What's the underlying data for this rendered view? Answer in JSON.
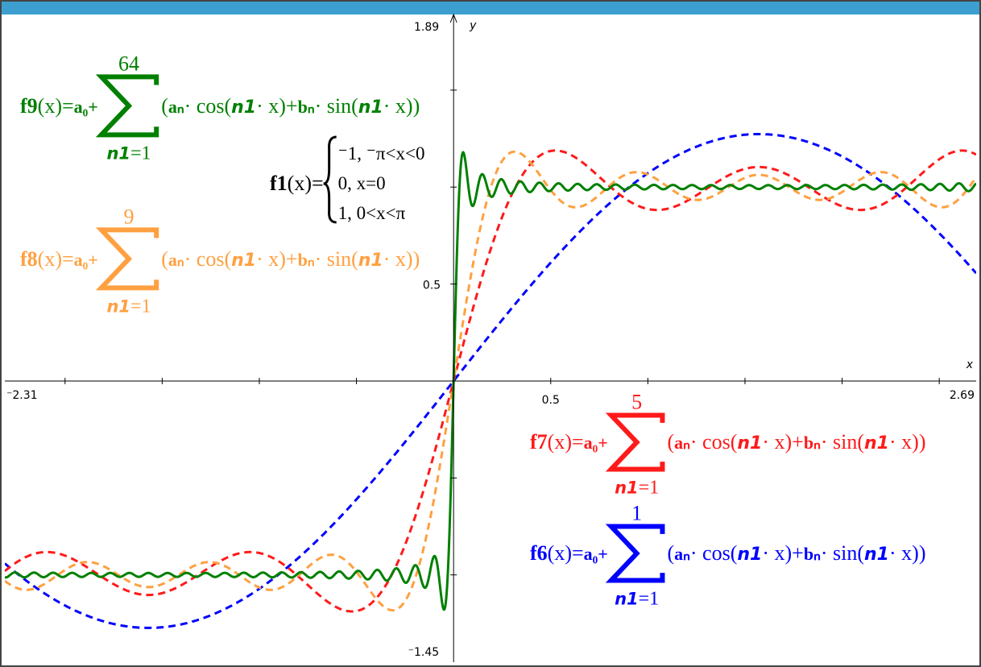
{
  "graph": {
    "xlim": [
      {
        "value": -2.31,
        "label": "⁻2.31"
      },
      2.69
    ],
    "ylim": [
      {
        "value": -1.45,
        "label": "⁻1.45"
      },
      1.89
    ],
    "xticks": [
      -2,
      -1.5,
      -1,
      -0.5,
      0.5,
      1,
      1.5,
      2,
      2.5
    ],
    "yticks": [
      -1,
      -0.5,
      0.5,
      1,
      1.5
    ],
    "x_tick_label": 0.5,
    "y_tick_label": 0.5,
    "x_label": "x",
    "y_label": "y"
  },
  "term": {
    "argument": "(x)=",
    "prefix": "a₀+",
    "summand": [
      "(",
      "aₙ",
      "· cos(",
      "n1",
      "· x)+",
      "bₙ",
      "· sin(",
      "n1",
      "· x))"
    ],
    "index": "n1",
    "lower": "=1"
  },
  "functions": [
    {
      "name": "f9",
      "upper": 64,
      "color": "#008000",
      "dashed": false
    },
    {
      "name": "f8",
      "upper": 9,
      "color": "#ffa040",
      "dashed": true
    },
    {
      "name": "f7",
      "upper": 5,
      "color": "#ff1a1a",
      "dashed": true
    },
    {
      "name": "f6",
      "upper": 1,
      "color": "#0000ff",
      "dashed": true
    }
  ],
  "f1": {
    "name": "f1",
    "argument": "(x)=",
    "cases": [
      "⁻1, ⁻π<x<0",
      "0,  x=0",
      "1,  0<x<π"
    ]
  }
}
